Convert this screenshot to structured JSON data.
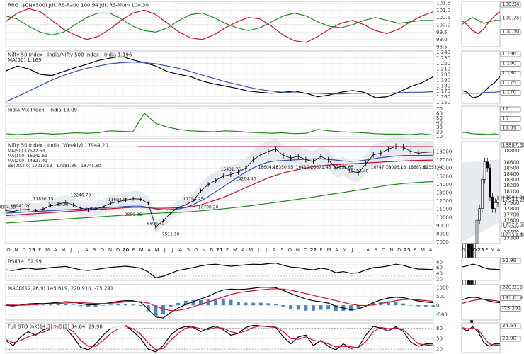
{
  "colors": {
    "bg": "#ffffff",
    "grid": "#dcdcdc",
    "black": "#000000",
    "red": "#c8102e",
    "green": "#1f8a1f",
    "blue": "#3a4fb0",
    "purple": "#7b3f8a",
    "bbfill": "#d8dde6",
    "macdHist": "#2f6fb2"
  },
  "chart_data": [
    {
      "type": "line",
      "panel": "rrg",
      "title": "RRG ($CNX500) JdK RS-Ratio 100.94 JdK RS-Mom 100.30",
      "ylim": [
        98.5,
        101.6
      ],
      "yticks": [
        "101.5",
        "101.0",
        "100.5",
        "100.0",
        "99.5",
        "99.0",
        "98.5"
      ],
      "badges": [
        "100.94",
        "100.75",
        "100.30"
      ],
      "series": [
        {
          "name": "JdK RS-Ratio",
          "color": "red",
          "values": [
            100.2,
            100.8,
            101.1,
            100.9,
            100.3,
            99.7,
            99.3,
            99.0,
            99.2,
            99.7,
            100.3,
            100.8,
            101.0,
            100.7,
            100.1,
            99.5,
            99.1,
            99.0,
            99.3,
            99.8,
            100.2,
            100.5,
            100.4,
            99.9,
            99.3,
            98.9,
            98.8,
            99.2,
            99.7,
            100.1,
            100.3,
            100.0,
            99.6,
            99.4,
            99.7,
            100.2,
            100.6,
            100.9
          ]
        },
        {
          "name": "JdK RS-Mom",
          "color": "green",
          "values": [
            100.6,
            100.4,
            99.9,
            99.5,
            99.3,
            99.5,
            100.0,
            100.5,
            100.8,
            100.8,
            100.4,
            99.9,
            99.6,
            99.5,
            99.8,
            100.3,
            100.7,
            100.8,
            100.5,
            100.1,
            99.8,
            99.6,
            99.8,
            100.2,
            100.6,
            100.8,
            100.6,
            100.2,
            99.9,
            99.8,
            100.0,
            100.3,
            100.5,
            100.3,
            100.1,
            100.2,
            100.3,
            100.3
          ]
        }
      ]
    },
    {
      "type": "line",
      "panel": "rs",
      "title": "Nifty 50 Index - India/Nifty 500 Index - India 1.196",
      "legend2": "MA(50) 1.169",
      "ylim": [
        1.148,
        1.242
      ],
      "yticks": [
        "1.240",
        "1.230",
        "1.220",
        "1.210",
        "1.200",
        "1.190",
        "1.180",
        "1.170",
        "1.160",
        "1.150"
      ],
      "badges": [
        "1.196",
        "1.190",
        "1.180",
        "1.175",
        "1.170"
      ],
      "series": [
        {
          "name": "Nifty 50 Index - India/Nifty 500 Index - India",
          "color": "black",
          "values": [
            1.206,
            1.215,
            1.21,
            1.2,
            1.198,
            1.205,
            1.212,
            1.218,
            1.225,
            1.229,
            1.233,
            1.226,
            1.221,
            1.215,
            1.205,
            1.2,
            1.196,
            1.188,
            1.183,
            1.179,
            1.175,
            1.17,
            1.168,
            1.166,
            1.168,
            1.17,
            1.166,
            1.16,
            1.163,
            1.168,
            1.171,
            1.168,
            1.158,
            1.16,
            1.168,
            1.178,
            1.185,
            1.196
          ]
        },
        {
          "name": "MA(50)",
          "color": "blue",
          "values": [
            1.151,
            1.16,
            1.17,
            1.18,
            1.19,
            1.198,
            1.205,
            1.211,
            1.215,
            1.219,
            1.221,
            1.222,
            1.221,
            1.219,
            1.215,
            1.211,
            1.205,
            1.199,
            1.193,
            1.187,
            1.182,
            1.177,
            1.173,
            1.17,
            1.168,
            1.167,
            1.166,
            1.166,
            1.165,
            1.165,
            1.166,
            1.166,
            1.166,
            1.166,
            1.167,
            1.168,
            1.168,
            1.169
          ]
        }
      ]
    },
    {
      "type": "line",
      "panel": "vix",
      "title": "India Vix Index - India 13.09",
      "ylim": [
        5,
        75
      ],
      "yticks": [
        "70",
        "60",
        "50",
        "40",
        "30",
        "20",
        "10"
      ],
      "badges": [
        "17",
        "15",
        "13.09"
      ],
      "series": [
        {
          "name": "India Vix Index - India",
          "color": "green",
          "values": [
            16,
            14,
            15,
            17,
            15,
            16,
            18,
            17,
            18,
            22,
            21,
            20,
            60,
            38,
            30,
            25,
            22,
            21,
            20,
            22,
            21,
            19,
            18,
            17,
            18,
            16,
            17,
            25,
            22,
            20,
            19,
            18,
            16,
            15,
            15,
            14,
            16,
            13.09
          ]
        }
      ]
    },
    {
      "type": "line",
      "panel": "price",
      "title": "Nifty 50 Index - India (Weekly) 17944.20",
      "legend": [
        {
          "text": "MA(50) 17522.63",
          "color": "blue"
        },
        {
          "text": "MA(100) 16942.51",
          "color": "red"
        },
        {
          "text": "MA(200) 14327.41",
          "color": "green"
        },
        {
          "text": "BB(20,2.0) 17217.13 - 17981.36 - 18745.60",
          "color": "purple"
        }
      ],
      "ylim": [
        6800,
        19200
      ],
      "yticks": [
        "18000",
        "17000",
        "16000",
        "15000",
        "14000",
        "13000",
        "12000",
        "11000",
        "10000",
        "9000",
        "8000",
        "7000"
      ],
      "xlabels": [
        "O",
        "N",
        "D",
        "19",
        "F",
        "M",
        "A",
        "M",
        "J",
        "J",
        "A",
        "S",
        "O",
        "N",
        "D",
        "20",
        "F",
        "M",
        "A",
        "M",
        "J",
        "J",
        "A",
        "S",
        "O",
        "N",
        "D",
        "21",
        "F",
        "M",
        "A",
        "M",
        "J",
        "J",
        "A",
        "S",
        "O",
        "N",
        "D",
        "22",
        "F",
        "M",
        "A",
        "M",
        "J",
        "J",
        "A",
        "S",
        "O",
        "N",
        "D",
        "23",
        "F",
        "M",
        "A"
      ],
      "annotations": [
        "10804.55",
        "10941.20",
        "11856.15",
        "11100.20",
        "12246.70",
        "10637.15",
        "11694.85",
        "9889.05",
        "8806.75",
        "7511.10",
        "11794.25",
        "10790.20",
        "15431.75",
        "14264.40",
        "18604.45",
        "18350.95",
        "16410.20",
        "15671.45",
        "17611.65",
        "15183.40",
        "16747.70",
        "18096.15",
        "18887.60",
        "17353.40"
      ],
      "close": [
        10800,
        10700,
        10900,
        10950,
        10800,
        11000,
        11400,
        11600,
        11800,
        11500,
        11100,
        10900,
        11000,
        11300,
        11700,
        11900,
        12100,
        12250,
        12200,
        11700,
        8800,
        9600,
        10500,
        11200,
        11500,
        12000,
        13200,
        14000,
        14500,
        15000,
        15200,
        15500,
        16000,
        17000,
        17600,
        18000,
        18300,
        17500,
        17200,
        17400,
        17000,
        16800,
        17400,
        17000,
        16000,
        16200,
        15600,
        15400,
        16500,
        17600,
        17800,
        18300,
        18600,
        18500,
        18000,
        17800,
        17900,
        17944
      ],
      "series": [
        {
          "name": "MA(50)",
          "color": "blue",
          "values": [
            10500,
            10550,
            10600,
            10650,
            10700,
            10750,
            10800,
            10850,
            10900,
            10950,
            11000,
            11050,
            11100,
            11150,
            11200,
            11250,
            11300,
            11350,
            11350,
            11200,
            11000,
            10900,
            10950,
            11000,
            11200,
            11500,
            12000,
            12500,
            13100,
            13700,
            14300,
            14900,
            15500,
            16000,
            16400,
            16700,
            16850,
            16900,
            16950,
            17000,
            17050,
            17100,
            17100,
            17050,
            16950,
            16850,
            16800,
            16850,
            16950,
            17100,
            17250,
            17350,
            17450,
            17500,
            17510,
            17515,
            17520,
            17523
          ]
        },
        {
          "name": "MA(100)",
          "color": "red",
          "values": [
            10200,
            10260,
            10320,
            10380,
            10440,
            10500,
            10560,
            10620,
            10680,
            10740,
            10800,
            10860,
            10920,
            10980,
            11040,
            11100,
            11150,
            11200,
            11200,
            11150,
            11100,
            11100,
            11120,
            11150,
            11200,
            11300,
            11500,
            11800,
            12100,
            12400,
            12800,
            13200,
            13600,
            14000,
            14400,
            14800,
            15100,
            15400,
            15600,
            15800,
            16000,
            16150,
            16250,
            16350,
            16400,
            16450,
            16500,
            16550,
            16600,
            16650,
            16700,
            16750,
            16800,
            16850,
            16880,
            16910,
            16930,
            16943
          ]
        },
        {
          "name": "MA(200)",
          "color": "green",
          "values": [
            9300,
            9360,
            9420,
            9480,
            9540,
            9600,
            9660,
            9720,
            9780,
            9840,
            9900,
            9960,
            10020,
            10080,
            10140,
            10200,
            10260,
            10320,
            10380,
            10440,
            10480,
            10520,
            10560,
            10600,
            10640,
            10700,
            10780,
            10860,
            10940,
            11020,
            11120,
            11220,
            11330,
            11440,
            11560,
            11680,
            11800,
            11930,
            12060,
            12190,
            12320,
            12460,
            12600,
            12740,
            12880,
            13020,
            13160,
            13300,
            13450,
            13600,
            13750,
            13900,
            14000,
            14100,
            14170,
            14230,
            14290,
            14327
          ]
        }
      ],
      "inset_ylim": [
        17200,
        18950
      ],
      "inset_yticks": [
        "18900",
        "18800",
        "18600",
        "18500",
        "18400",
        "18300",
        "18200",
        "18100",
        "18000",
        "17900",
        "17800",
        "17700",
        "17600",
        "17500",
        "17400",
        "17300"
      ],
      "inset_badges": [
        "18887.60",
        "17981.36",
        "17944.20",
        "17522.63",
        "17353.40"
      ]
    },
    {
      "type": "line",
      "panel": "rsi",
      "title": "RSI(14) 52.99",
      "ylim": [
        15,
        95
      ],
      "yticks": [
        "80",
        "60",
        "40",
        "20"
      ],
      "badges": [
        "52.99"
      ],
      "series": [
        {
          "name": "RSI(14)",
          "color": "black",
          "values": [
            52,
            50,
            55,
            58,
            54,
            56,
            60,
            62,
            64,
            58,
            52,
            50,
            53,
            57,
            61,
            63,
            65,
            62,
            58,
            45,
            24,
            30,
            40,
            50,
            55,
            60,
            66,
            70,
            72,
            68,
            65,
            67,
            70,
            72,
            71,
            74,
            76,
            68,
            62,
            60,
            55,
            52,
            58,
            54,
            42,
            46,
            40,
            42,
            52,
            60,
            62,
            66,
            72,
            68,
            60,
            55,
            54,
            52.99
          ]
        }
      ]
    },
    {
      "type": "line",
      "panel": "macd",
      "title": "MACD(12,26,9) 145.619, 220.910, -75.291",
      "ylim": [
        -820,
        1150
      ],
      "yticks": [
        "1000",
        "500",
        "0",
        "-500"
      ],
      "badges": [
        "220.910",
        "145.619",
        "-75.291"
      ],
      "series": [
        {
          "name": "MACD",
          "color": "black",
          "values": [
            0,
            -40,
            20,
            80,
            100,
            90,
            120,
            160,
            200,
            180,
            100,
            20,
            30,
            80,
            150,
            220,
            260,
            250,
            160,
            -200,
            -650,
            -700,
            -400,
            -150,
            50,
            200,
            350,
            500,
            700,
            850,
            900,
            880,
            900,
            950,
            1000,
            1010,
            980,
            820,
            650,
            500,
            350,
            250,
            200,
            120,
            -50,
            -150,
            -250,
            -200,
            -50,
            150,
            300,
            400,
            450,
            420,
            330,
            240,
            180,
            146
          ]
        },
        {
          "name": "Signal",
          "color": "red",
          "values": [
            20,
            10,
            5,
            15,
            40,
            60,
            80,
            100,
            130,
            150,
            150,
            120,
            100,
            100,
            115,
            150,
            190,
            210,
            200,
            120,
            -50,
            -200,
            -300,
            -280,
            -200,
            -80,
            50,
            180,
            320,
            470,
            600,
            700,
            760,
            810,
            860,
            900,
            920,
            900,
            840,
            750,
            650,
            550,
            450,
            360,
            260,
            160,
            60,
            0,
            -20,
            20,
            100,
            180,
            260,
            320,
            330,
            300,
            260,
            221
          ]
        }
      ]
    },
    {
      "type": "line",
      "panel": "sto",
      "title": "Full STO %K(14,3) %D(3) 34.64, 29.98",
      "ylim": [
        10,
        95
      ],
      "yticks": [
        "80",
        "50",
        "20"
      ],
      "badges": [
        "34.64",
        "29.98"
      ],
      "series": [
        {
          "name": "%K",
          "color": "black",
          "values": [
            45,
            30,
            55,
            70,
            60,
            75,
            82,
            88,
            80,
            55,
            25,
            18,
            35,
            60,
            80,
            85,
            88,
            70,
            50,
            20,
            12,
            30,
            60,
            78,
            85,
            82,
            70,
            80,
            86,
            75,
            60,
            65,
            82,
            88,
            86,
            84,
            82,
            55,
            35,
            55,
            60,
            30,
            45,
            28,
            18,
            35,
            22,
            25,
            60,
            85,
            80,
            72,
            84,
            70,
            40,
            28,
            35,
            34.64
          ]
        },
        {
          "name": "%D",
          "color": "red",
          "values": [
            48,
            38,
            45,
            55,
            62,
            68,
            78,
            84,
            83,
            70,
            45,
            28,
            28,
            45,
            65,
            78,
            85,
            78,
            62,
            38,
            18,
            22,
            45,
            65,
            80,
            84,
            78,
            76,
            82,
            80,
            70,
            65,
            72,
            82,
            86,
            85,
            83,
            70,
            50,
            48,
            55,
            45,
            42,
            35,
            26,
            28,
            27,
            24,
            42,
            70,
            82,
            78,
            80,
            75,
            55,
            35,
            32,
            29.98
          ]
        }
      ]
    }
  ]
}
